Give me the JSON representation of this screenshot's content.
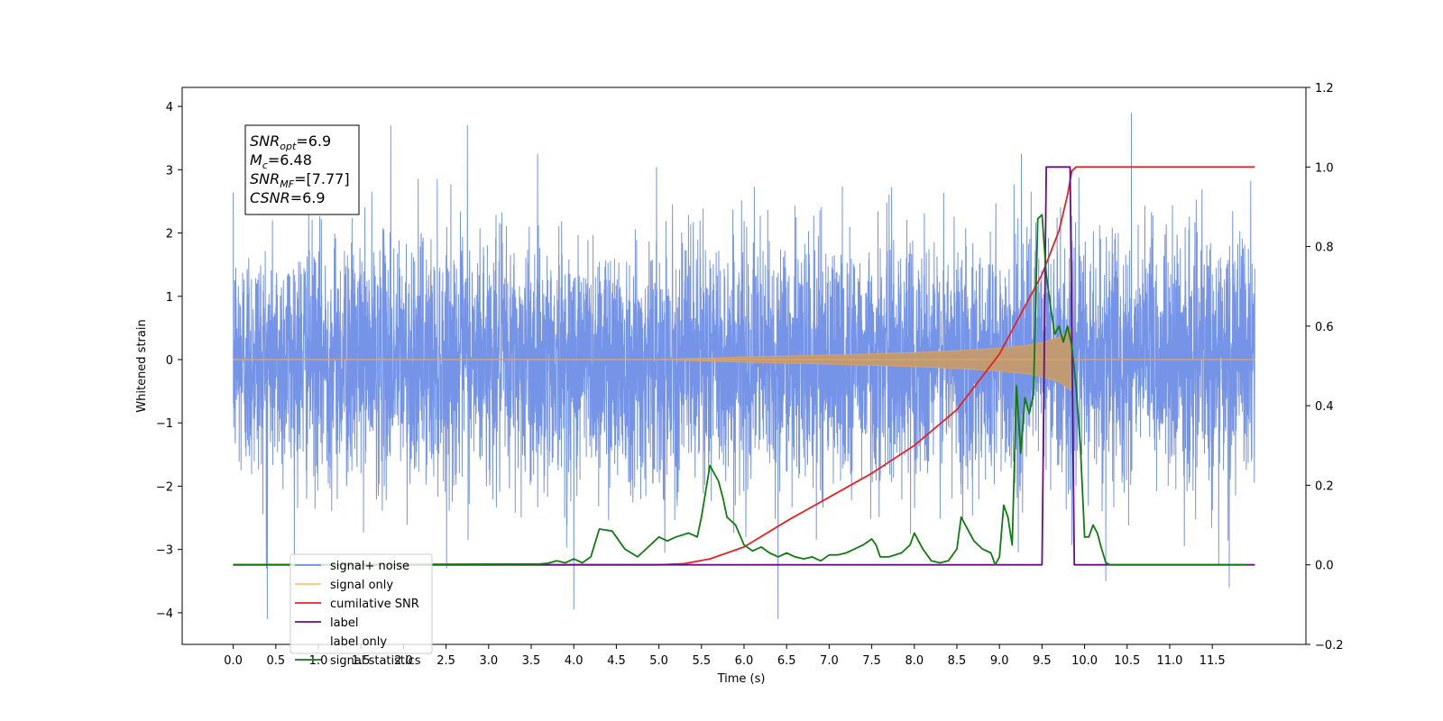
{
  "chart_data": {
    "type": "line",
    "xlabel": "Time (s)",
    "ylabel_left": "Whitened strain",
    "ylabel_right": "",
    "xlim": [
      -0.6,
      12.6
    ],
    "ylim_left": [
      -4.5,
      4.3
    ],
    "ylim_right": [
      -0.2,
      1.2
    ],
    "x_ticks": [
      0.0,
      0.5,
      1.0,
      1.5,
      2.0,
      2.5,
      3.0,
      3.5,
      4.0,
      4.5,
      5.0,
      5.5,
      6.0,
      6.5,
      7.0,
      7.5,
      8.0,
      8.5,
      9.0,
      9.5,
      10.0,
      10.5,
      11.0,
      11.5
    ],
    "x_tick_labels": [
      "0.0",
      "0.5",
      "1.0",
      "1.5",
      "2.0",
      "2.5",
      "3.0",
      "3.5",
      "4.0",
      "4.5",
      "5.0",
      "5.5",
      "6.0",
      "6.5",
      "7.0",
      "7.5",
      "8.0",
      "8.5",
      "9.0",
      "9.5",
      "10.0",
      "10.5",
      "11.0",
      "11.5"
    ],
    "y_left_ticks": [
      4,
      3,
      2,
      1,
      0,
      -1,
      -2,
      -3,
      -4
    ],
    "y_left_tick_labels": [
      "4",
      "3",
      "2",
      "1",
      "0",
      "−1",
      "−2",
      "−3",
      "−4"
    ],
    "y_right_ticks": [
      1.2,
      1.0,
      0.8,
      0.6,
      0.4,
      0.2,
      0.0,
      -0.2
    ],
    "y_right_tick_labels": [
      "1.2",
      "1.0",
      "0.8",
      "0.6",
      "0.4",
      "0.2",
      "0.0",
      "−0.2"
    ],
    "grid": false,
    "legend_position": "lower-left",
    "series": [
      {
        "name": "signal+ noise",
        "axis": "left",
        "color": "#6f8ee6",
        "x_range": [
          0.0,
          12.0
        ],
        "noise_std": 0.95,
        "peaks": [
          [
            0.4,
            -4.1
          ],
          [
            1.85,
            3.7
          ],
          [
            2.75,
            3.7
          ],
          [
            4.0,
            -3.95
          ],
          [
            6.4,
            -4.1
          ],
          [
            10.25,
            -3.5
          ],
          [
            10.55,
            3.9
          ],
          [
            11.7,
            -3.6
          ]
        ],
        "description_values": "dense noise filling approximately −2.6 to 2.6"
      },
      {
        "name": "signal only",
        "axis": "left",
        "color": "#d9a36a",
        "x": [
          0.0,
          5.0,
          6.0,
          7.0,
          8.0,
          8.5,
          9.0,
          9.3,
          9.5,
          9.7,
          9.8,
          9.85,
          9.86,
          12.0
        ],
        "amplitude": [
          0.0,
          0.0,
          0.04,
          0.07,
          0.11,
          0.14,
          0.18,
          0.22,
          0.27,
          0.35,
          0.45,
          0.5,
          0.0,
          0.0
        ]
      },
      {
        "name": "cumilative SNR",
        "axis": "right",
        "color": "#e8221f",
        "x": [
          0.0,
          5.0,
          5.3,
          5.6,
          6.0,
          6.5,
          7.0,
          7.5,
          8.0,
          8.5,
          9.0,
          9.3,
          9.5,
          9.7,
          9.8,
          9.85,
          9.9,
          12.0
        ],
        "y": [
          0.0,
          0.0,
          0.003,
          0.015,
          0.045,
          0.11,
          0.17,
          0.23,
          0.3,
          0.39,
          0.53,
          0.65,
          0.73,
          0.84,
          0.93,
          0.99,
          1.0,
          1.0
        ]
      },
      {
        "name": "label",
        "axis": "right",
        "color": "#6a0d83",
        "x": [
          0.0,
          9.5,
          9.55,
          9.83,
          9.88,
          12.0
        ],
        "y": [
          0.0,
          0.0,
          1.0,
          1.0,
          0.0,
          0.0
        ]
      },
      {
        "name": "signal statistics",
        "axis": "right",
        "color": "#107c10",
        "x": [
          0.0,
          3.6,
          3.7,
          3.8,
          3.9,
          4.0,
          4.1,
          4.2,
          4.3,
          4.45,
          4.6,
          4.75,
          4.9,
          5.0,
          5.1,
          5.2,
          5.35,
          5.45,
          5.5,
          5.6,
          5.7,
          5.75,
          5.8,
          5.9,
          6.0,
          6.1,
          6.2,
          6.3,
          6.4,
          6.5,
          6.6,
          6.7,
          6.8,
          6.9,
          7.0,
          7.1,
          7.2,
          7.3,
          7.4,
          7.5,
          7.55,
          7.6,
          7.7,
          7.85,
          7.95,
          8.0,
          8.1,
          8.2,
          8.3,
          8.4,
          8.5,
          8.55,
          8.6,
          8.7,
          8.8,
          8.9,
          8.95,
          9.0,
          9.05,
          9.1,
          9.15,
          9.2,
          9.25,
          9.3,
          9.35,
          9.4,
          9.45,
          9.5,
          9.55,
          9.6,
          9.65,
          9.7,
          9.75,
          9.8,
          9.85,
          9.9,
          9.95,
          10.0,
          10.05,
          10.1,
          10.15,
          10.2,
          10.25,
          10.3,
          10.4,
          11.9
        ],
        "y": [
          0.0,
          0.002,
          0.004,
          0.01,
          0.005,
          0.015,
          0.005,
          0.02,
          0.09,
          0.085,
          0.04,
          0.02,
          0.05,
          0.07,
          0.06,
          0.07,
          0.08,
          0.07,
          0.12,
          0.25,
          0.21,
          0.17,
          0.12,
          0.1,
          0.05,
          0.035,
          0.045,
          0.03,
          0.02,
          0.03,
          0.02,
          0.015,
          0.02,
          0.01,
          0.025,
          0.025,
          0.03,
          0.04,
          0.05,
          0.065,
          0.05,
          0.02,
          0.02,
          0.03,
          0.05,
          0.08,
          0.04,
          0.01,
          0.005,
          0.01,
          0.04,
          0.12,
          0.1,
          0.06,
          0.04,
          0.03,
          0.0,
          0.02,
          0.15,
          0.12,
          0.05,
          0.45,
          0.28,
          0.42,
          0.38,
          0.43,
          0.87,
          0.88,
          0.73,
          0.65,
          0.58,
          0.6,
          0.56,
          0.6,
          0.55,
          0.45,
          0.3,
          0.07,
          0.07,
          0.1,
          0.08,
          0.04,
          0.005,
          0.0,
          0.0,
          0.0
        ]
      }
    ],
    "legend_entries": [
      "signal+ noise",
      "signal only",
      "cumilative SNR",
      "label",
      "label only",
      "signal statistics"
    ],
    "annotations": [
      {
        "base": "SNR",
        "sub": "opt",
        "value": "=6.9"
      },
      {
        "base": "M",
        "sub": "c",
        "value": "=6.48"
      },
      {
        "base": "SNR",
        "sub": "MF",
        "value": "=[7.77]"
      },
      {
        "base": "CSNR",
        "sub": "",
        "value": "=6.9"
      }
    ]
  }
}
